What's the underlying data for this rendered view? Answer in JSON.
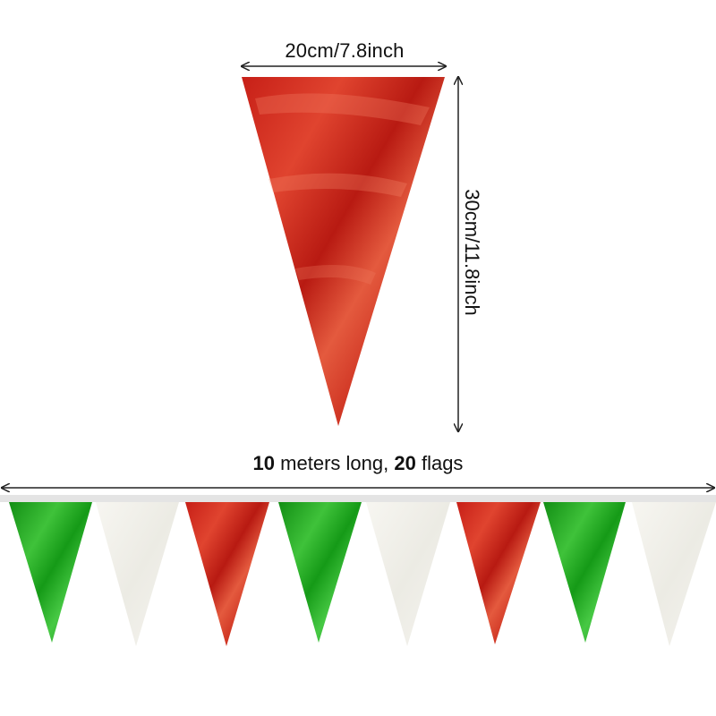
{
  "dimensions": {
    "width_label": "20cm/7.8inch",
    "height_label": "30cm/11.8inch"
  },
  "banner": {
    "length_number": "10",
    "length_text": "meters long,",
    "flag_count": "20",
    "flag_text": "flags",
    "flag_colors": [
      "green",
      "white",
      "red",
      "green",
      "white",
      "red",
      "green",
      "white"
    ]
  },
  "colors": {
    "red": "#d42a20",
    "green": "#1aa51c",
    "white": "#f3f1ec",
    "arrow": "#222222",
    "string": "#dcdcdc"
  }
}
